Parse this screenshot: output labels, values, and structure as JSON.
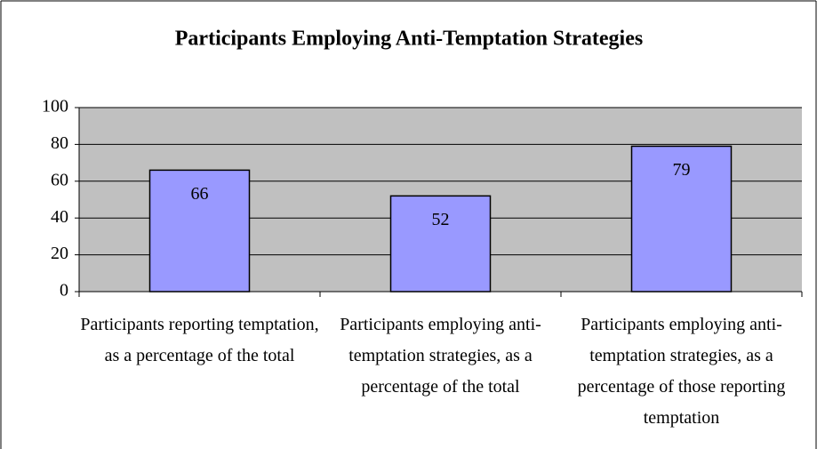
{
  "chart_data": {
    "type": "bar",
    "title": "Participants Employing Anti-Temptation Strategies",
    "categories": [
      "Participants reporting temptation, as a percentage of the total",
      "Participants employing anti-temptation strategies, as a percentage of the total",
      "Participants employing anti-temptation strategies, as a percentage of those reporting temptation"
    ],
    "values": [
      66,
      52,
      79
    ],
    "color": "#9999ff",
    "ylim": [
      0,
      100
    ],
    "yticks": [
      0,
      20,
      40,
      60,
      80,
      100
    ],
    "grid": true
  }
}
